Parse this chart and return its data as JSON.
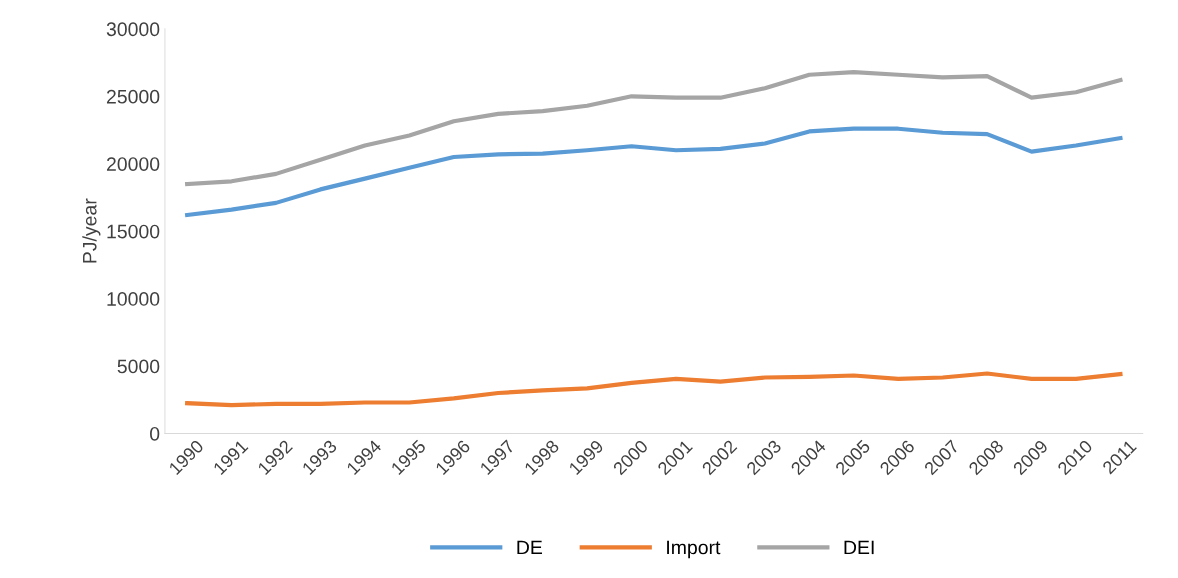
{
  "chart_data": {
    "type": "line",
    "ylabel": "PJ/year",
    "categories": [
      "1990",
      "1991",
      "1992",
      "1993",
      "1994",
      "1995",
      "1996",
      "1997",
      "1998",
      "1999",
      "2000",
      "2001",
      "2002",
      "2003",
      "2004",
      "2005",
      "2006",
      "2007",
      "2008",
      "2009",
      "2010",
      "2011"
    ],
    "series": [
      {
        "name": "DE",
        "color": "#5b9bd5",
        "values": [
          16200,
          16600,
          17100,
          18100,
          18900,
          19700,
          20500,
          20700,
          20750,
          21000,
          21300,
          21000,
          21100,
          21500,
          22400,
          22600,
          22600,
          22300,
          22200,
          20900,
          21350,
          21900
        ]
      },
      {
        "name": "Import",
        "color": "#ed7d31",
        "values": [
          2250,
          2100,
          2200,
          2200,
          2300,
          2300,
          2600,
          3000,
          3200,
          3350,
          3750,
          4050,
          3850,
          4150,
          4200,
          4300,
          4050,
          4150,
          4450,
          4050,
          4050,
          4400
        ]
      },
      {
        "name": "DEI",
        "color": "#a5a5a5",
        "values": [
          18500,
          18700,
          19250,
          20300,
          21350,
          22100,
          23150,
          23700,
          23900,
          24300,
          25000,
          24900,
          24900,
          25600,
          26600,
          26800,
          26600,
          26400,
          26500,
          24900,
          25300,
          26200
        ]
      }
    ],
    "ylim": [
      0,
      30000
    ],
    "yticks": [
      0,
      5000,
      10000,
      15000,
      20000,
      25000,
      30000
    ],
    "grid": false,
    "legend": "bottom",
    "marker": "none",
    "line_style": "solid"
  }
}
